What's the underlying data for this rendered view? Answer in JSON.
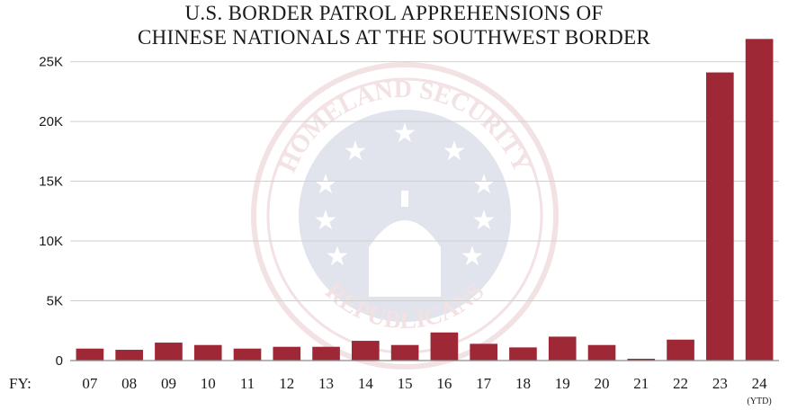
{
  "chart_data": {
    "type": "bar",
    "title_lines": [
      "U.S. BORDER PATROL APPREHENSIONS OF",
      "CHINESE NATIONALS AT THE SOUTHWEST BORDER"
    ],
    "xlabel": "FY:",
    "ylabel": "",
    "categories": [
      "07",
      "08",
      "09",
      "10",
      "11",
      "12",
      "13",
      "14",
      "15",
      "16",
      "17",
      "18",
      "19",
      "20",
      "21",
      "22",
      "23",
      "24"
    ],
    "category_notes": {
      "24": "(YTD)"
    },
    "values": [
      1000,
      900,
      1500,
      1300,
      1000,
      1150,
      1150,
      1650,
      1300,
      2350,
      1400,
      1100,
      2000,
      1300,
      150,
      1750,
      24100,
      26900
    ],
    "ylim": [
      0,
      27000
    ],
    "yticks": [
      0,
      5000,
      10000,
      15000,
      20000,
      25000
    ],
    "ytick_labels": [
      "0",
      "5K",
      "10K",
      "15K",
      "20K",
      "25K"
    ],
    "grid": true,
    "bar_color": "#9e2836"
  },
  "watermark": {
    "top_text": "HOMELAND SECURITY",
    "bottom_text": "REPUBLICANS"
  }
}
